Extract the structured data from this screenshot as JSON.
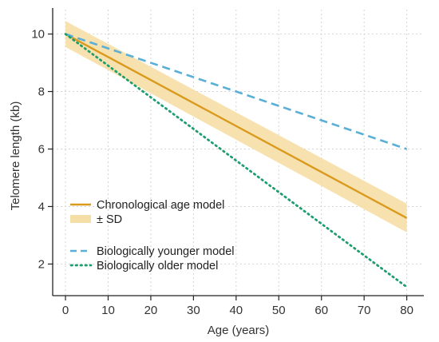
{
  "chart_data": {
    "type": "line",
    "xlabel": "Age (years)",
    "ylabel": "Telomere length (kb)",
    "xlim": [
      -3,
      84
    ],
    "ylim": [
      0.9,
      10.85
    ],
    "xticks": [
      0,
      10,
      20,
      30,
      40,
      50,
      60,
      70,
      80
    ],
    "yticks": [
      2,
      4,
      6,
      8,
      10
    ],
    "grid": true,
    "legend_position": "lower-left",
    "series": [
      {
        "name": "Chronological age model",
        "x": [
          0,
          80
        ],
        "y": [
          10,
          3.6
        ],
        "color": "#D99A1E",
        "style": "solid"
      },
      {
        "name": "Biologically younger model",
        "x": [
          0,
          80
        ],
        "y": [
          10,
          6
        ],
        "color": "#5AAFD6",
        "style": "dashed"
      },
      {
        "name": "Biologically older model",
        "x": [
          0,
          80
        ],
        "y": [
          10,
          1.2
        ],
        "color": "#1E9E6E",
        "style": "dotted"
      }
    ],
    "band": {
      "name": "± SD",
      "x": [
        0,
        80
      ],
      "upper": [
        10.45,
        4.1
      ],
      "lower": [
        9.55,
        3.1
      ],
      "color": "#F6DFA6"
    }
  }
}
